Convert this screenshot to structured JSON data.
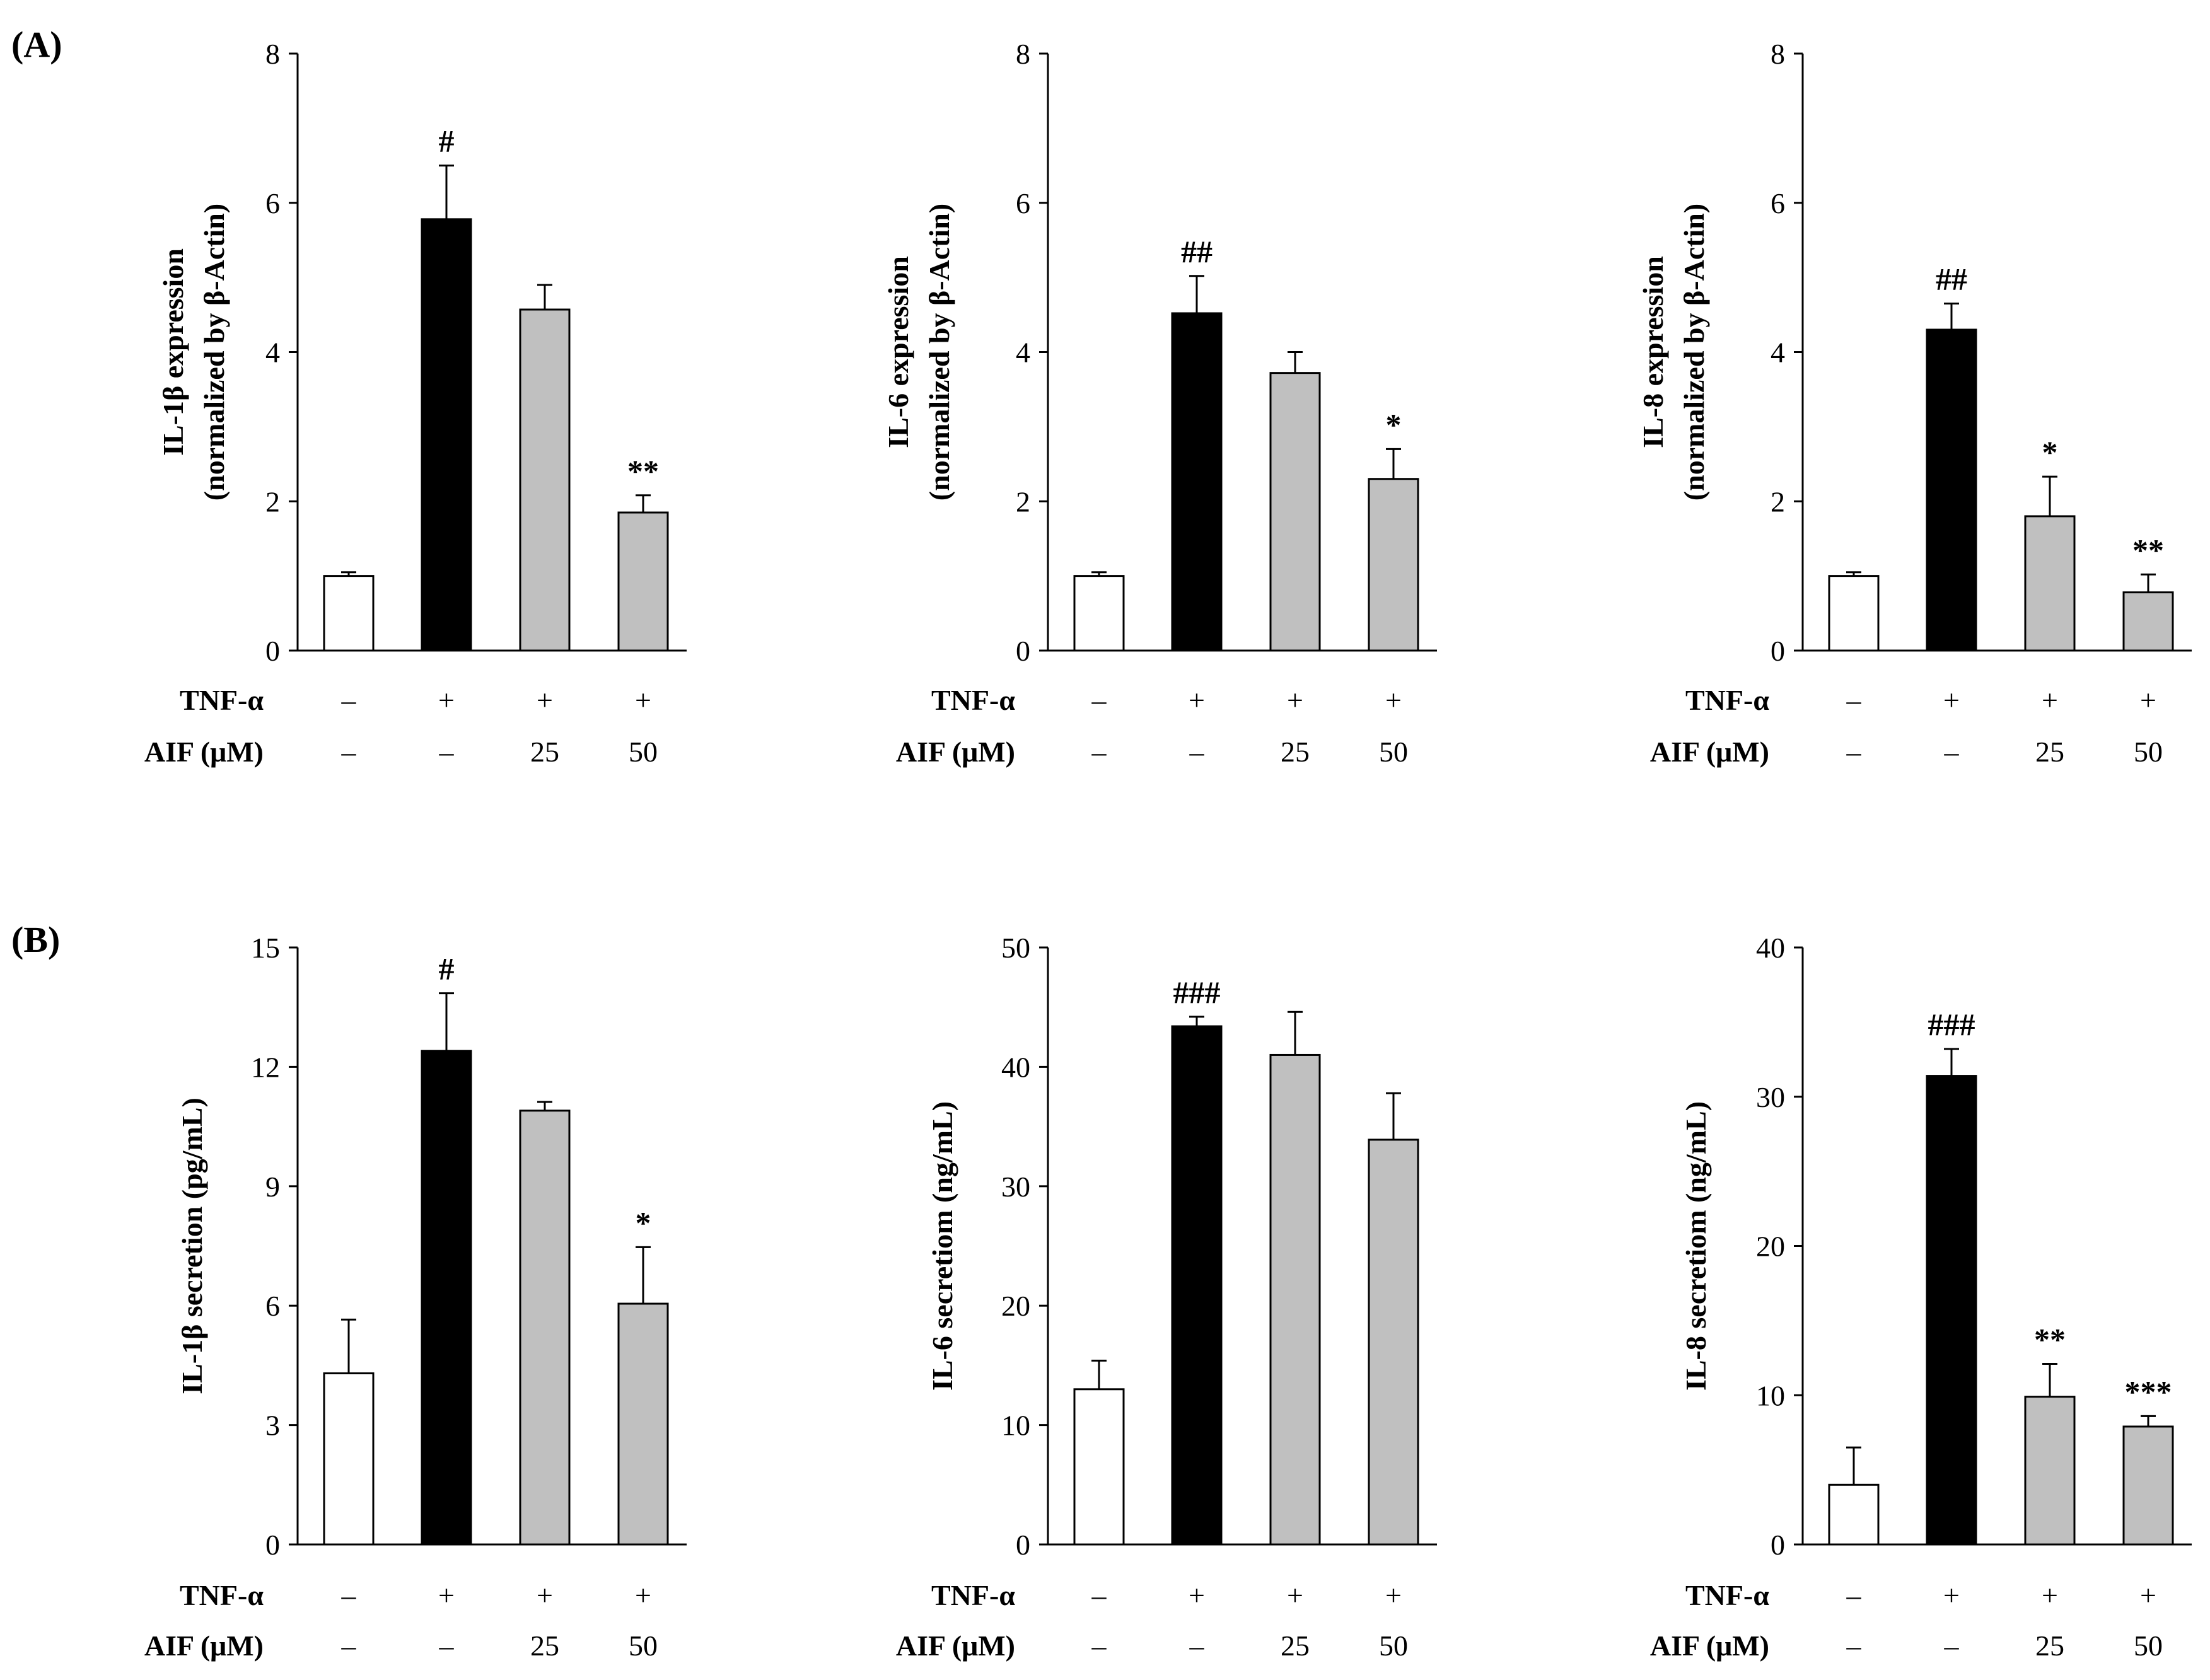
{
  "panel_labels": [
    "(A)",
    "(B)"
  ],
  "conditions": {
    "tnf_label": "TNF-α",
    "aif_label": "AIF (μM)",
    "tnf_values": [
      "–",
      "+",
      "+",
      "+"
    ],
    "aif_values": [
      "–",
      "–",
      "25",
      "50"
    ]
  },
  "colors": {
    "control": "#ffffff",
    "tnf": "#000000",
    "aif": "#c0c0c0",
    "stroke": "#000000"
  },
  "chart_data": [
    {
      "type": "bar",
      "panel": "(A)",
      "ylabel_line1": "IL-1β expression",
      "ylabel_line2": "(normalized by β-Actin)",
      "ylim": [
        0,
        8
      ],
      "yticks": [
        0,
        2,
        4,
        6,
        8
      ],
      "values": [
        1.0,
        5.78,
        4.57,
        1.85
      ],
      "errors": [
        0.05,
        0.72,
        0.33,
        0.23
      ],
      "significance": [
        "",
        "#",
        "",
        "**"
      ]
    },
    {
      "type": "bar",
      "panel": "(A)",
      "ylabel_line1": "IL-6 expression",
      "ylabel_line2": "(normalized by β-Actin)",
      "ylim": [
        0,
        8
      ],
      "yticks": [
        0,
        2,
        4,
        6,
        8
      ],
      "values": [
        1.0,
        4.52,
        3.72,
        2.3
      ],
      "errors": [
        0.05,
        0.5,
        0.28,
        0.4
      ],
      "significance": [
        "",
        "##",
        "",
        "*"
      ]
    },
    {
      "type": "bar",
      "panel": "(A)",
      "ylabel_line1": "IL-8 expression",
      "ylabel_line2": "(normalized by β-Actin)",
      "ylim": [
        0,
        8
      ],
      "yticks": [
        0,
        2,
        4,
        6,
        8
      ],
      "values": [
        1.0,
        4.3,
        1.8,
        0.78
      ],
      "errors": [
        0.05,
        0.35,
        0.53,
        0.24
      ],
      "significance": [
        "",
        "##",
        "*",
        "**"
      ]
    },
    {
      "type": "bar",
      "panel": "(B)",
      "ylabel_line1": "IL-1β secretion (pg/mL)",
      "ylabel_line2": "",
      "ylim": [
        0,
        15
      ],
      "yticks": [
        0,
        3,
        6,
        9,
        12,
        15
      ],
      "values": [
        4.3,
        12.4,
        10.9,
        6.05
      ],
      "errors": [
        1.35,
        1.45,
        0.22,
        1.42
      ],
      "significance": [
        "",
        "#",
        "",
        "*"
      ]
    },
    {
      "type": "bar",
      "panel": "(B)",
      "ylabel_line1": "IL-6 secretiom (ng/mL)",
      "ylabel_line2": "",
      "ylim": [
        0,
        50
      ],
      "yticks": [
        0,
        10,
        20,
        30,
        40,
        50
      ],
      "values": [
        13.0,
        43.4,
        41.0,
        33.9
      ],
      "errors": [
        2.4,
        0.8,
        3.6,
        3.9
      ],
      "significance": [
        "",
        "###",
        "",
        ""
      ]
    },
    {
      "type": "bar",
      "panel": "(B)",
      "ylabel_line1": "IL-8 secretiom (ng/mL)",
      "ylabel_line2": "",
      "ylim": [
        0,
        40
      ],
      "yticks": [
        0,
        10,
        20,
        30,
        40
      ],
      "values": [
        4.0,
        31.4,
        9.9,
        7.9
      ],
      "errors": [
        2.5,
        1.8,
        2.2,
        0.7
      ],
      "significance": [
        "",
        "###",
        "**",
        "***"
      ]
    }
  ]
}
